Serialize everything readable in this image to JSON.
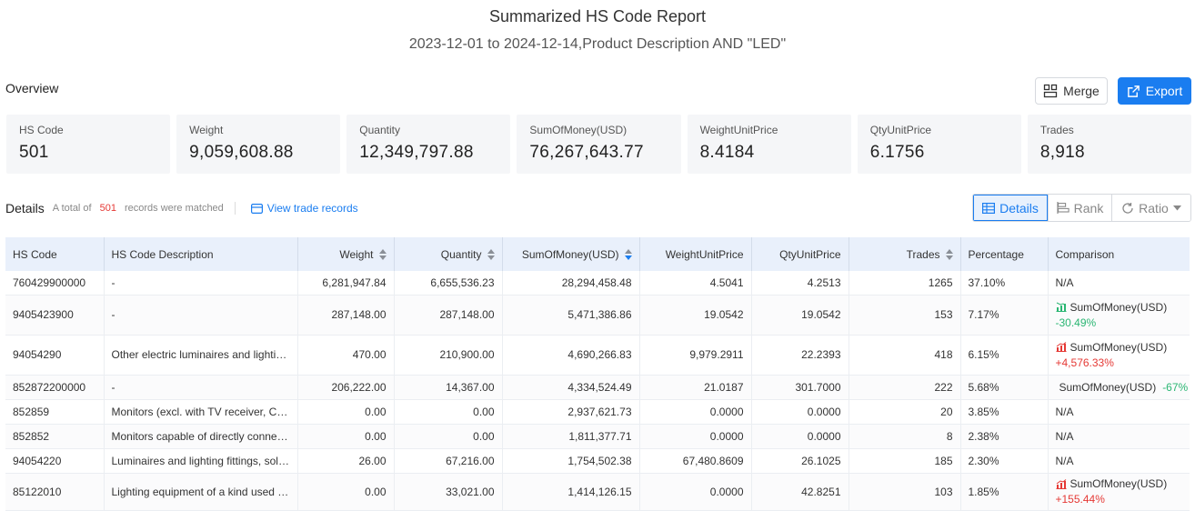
{
  "report": {
    "title": "Summarized HS Code Report",
    "subtitle": "2023-12-01 to 2024-12-14,Product Description AND \"LED\""
  },
  "overview": {
    "label": "Overview",
    "merge_label": "Merge",
    "export_label": "Export",
    "cards": [
      {
        "label": "HS Code",
        "value": "501"
      },
      {
        "label": "Weight",
        "value": "9,059,608.88"
      },
      {
        "label": "Quantity",
        "value": "12,349,797.88"
      },
      {
        "label": "SumOfMoney(USD)",
        "value": "76,267,643.77"
      },
      {
        "label": "WeightUnitPrice",
        "value": "8.4184"
      },
      {
        "label": "QtyUnitPrice",
        "value": "6.1756"
      },
      {
        "label": "Trades",
        "value": "8,918"
      }
    ]
  },
  "details": {
    "title": "Details",
    "total_prefix": "A total of",
    "total_count": "501",
    "total_suffix": "records were matched",
    "view_link": "View trade records",
    "views": {
      "details": "Details",
      "rank": "Rank",
      "ratio": "Ratio"
    }
  },
  "table": {
    "headers": [
      "HS Code",
      "HS Code Description",
      "Weight",
      "Quantity",
      "SumOfMoney(USD)",
      "WeightUnitPrice",
      "QtyUnitPrice",
      "Trades",
      "Percentage",
      "Comparison"
    ],
    "rows": [
      {
        "code": "760429900000",
        "desc": "-",
        "weight": "6,281,947.84",
        "qty": "6,655,536.23",
        "money": "28,294,458.48",
        "wup": "4.5041",
        "qup": "4.2513",
        "trades": "1265",
        "pct": "37.10%",
        "cmp_label": "N/A",
        "cmp_value": "",
        "cmp_dir": "none",
        "cmp_inline": false
      },
      {
        "code": "9405423900",
        "desc": "-",
        "weight": "287,148.00",
        "qty": "287,148.00",
        "money": "5,471,386.86",
        "wup": "19.0542",
        "qup": "19.0542",
        "trades": "153",
        "pct": "7.17%",
        "cmp_label": "SumOfMoney(USD)",
        "cmp_value": "-30.49%",
        "cmp_dir": "down",
        "cmp_inline": false
      },
      {
        "code": "94054290",
        "desc": "Other electric luminaires and lighting fittings",
        "weight": "470.00",
        "qty": "210,900.00",
        "money": "4,690,266.83",
        "wup": "9,979.2911",
        "qup": "22.2393",
        "trades": "418",
        "pct": "6.15%",
        "cmp_label": "SumOfMoney(USD)",
        "cmp_value": "+4,576.33%",
        "cmp_dir": "up",
        "cmp_inline": false
      },
      {
        "code": "852872200000",
        "desc": "-",
        "weight": "206,222.00",
        "qty": "14,367.00",
        "money": "4,334,524.49",
        "wup": "21.0187",
        "qup": "301.7000",
        "trades": "222",
        "pct": "5.68%",
        "cmp_label": "SumOfMoney(USD)",
        "cmp_value": "-67%",
        "cmp_dir": "down",
        "cmp_inline": true
      },
      {
        "code": "852859",
        "desc": "Monitors (excl. with TV receiver, CRT monitors)",
        "weight": "0.00",
        "qty": "0.00",
        "money": "2,937,621.73",
        "wup": "0.0000",
        "qup": "0.0000",
        "trades": "20",
        "pct": "3.85%",
        "cmp_label": "N/A",
        "cmp_value": "",
        "cmp_dir": "none",
        "cmp_inline": false
      },
      {
        "code": "852852",
        "desc": "Monitors capable of directly connecting to",
        "weight": "0.00",
        "qty": "0.00",
        "money": "1,811,377.71",
        "wup": "0.0000",
        "qup": "0.0000",
        "trades": "8",
        "pct": "2.38%",
        "cmp_label": "N/A",
        "cmp_value": "",
        "cmp_dir": "none",
        "cmp_inline": false
      },
      {
        "code": "94054220",
        "desc": "Luminaires and lighting fittings, solely",
        "weight": "26.00",
        "qty": "67,216.00",
        "money": "1,754,502.38",
        "wup": "67,480.8609",
        "qup": "26.1025",
        "trades": "185",
        "pct": "2.30%",
        "cmp_label": "N/A",
        "cmp_value": "",
        "cmp_dir": "none",
        "cmp_inline": false
      },
      {
        "code": "85122010",
        "desc": "Lighting equipment of a kind used for",
        "weight": "0.00",
        "qty": "33,021.00",
        "money": "1,414,126.15",
        "wup": "0.0000",
        "qup": "42.8251",
        "trades": "103",
        "pct": "1.85%",
        "cmp_label": "SumOfMoney(USD)",
        "cmp_value": "+155.44%",
        "cmp_dir": "up",
        "cmp_inline": false
      }
    ]
  },
  "colors": {
    "accent": "#1a7df0",
    "up": "#e53935",
    "down": "#2bb673",
    "header_bg": "#e9f0fb"
  }
}
